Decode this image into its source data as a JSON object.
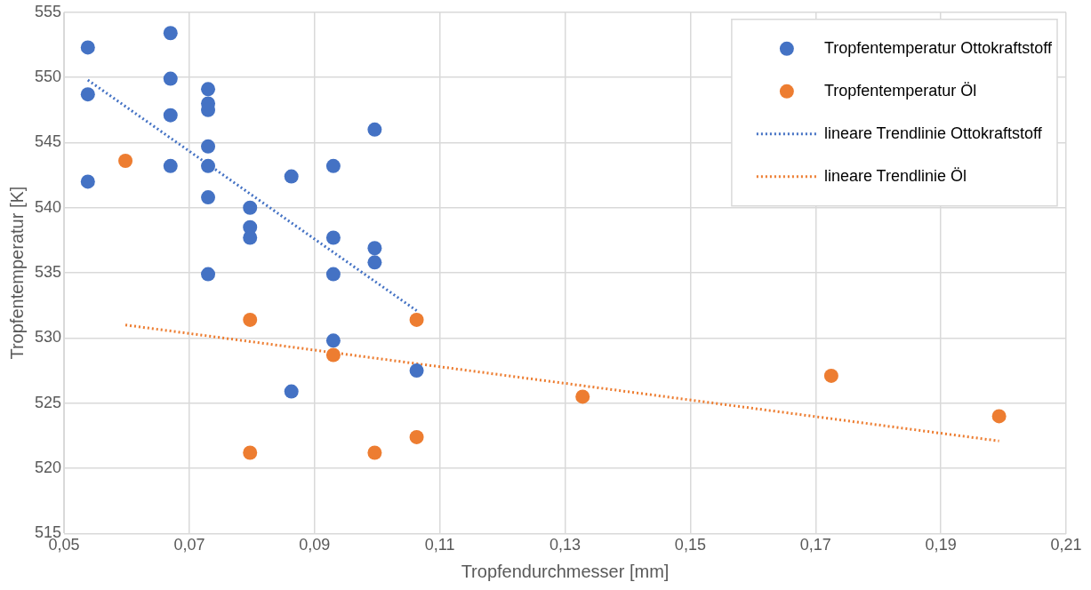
{
  "chart_data": {
    "type": "scatter",
    "xlabel": "Tropfendurchmesser [mm]",
    "ylabel": "Tropfentemperatur [K]",
    "xlim": [
      0.05,
      0.21
    ],
    "xticks": [
      {
        "value": 0.05,
        "label": "0,05"
      },
      {
        "value": 0.07,
        "label": "0,07"
      },
      {
        "value": 0.09,
        "label": "0,09"
      },
      {
        "value": 0.11,
        "label": "0,11"
      },
      {
        "value": 0.13,
        "label": "0,13"
      },
      {
        "value": 0.15,
        "label": "0,15"
      },
      {
        "value": 0.17,
        "label": "0,17"
      },
      {
        "value": 0.19,
        "label": "0,19"
      },
      {
        "value": 0.21,
        "label": "0,21"
      }
    ],
    "ylim": [
      515,
      555
    ],
    "yticks": [
      515,
      520,
      525,
      530,
      535,
      540,
      545,
      550,
      555
    ],
    "grid": true,
    "legend": "top right",
    "marker": "circle",
    "series": [
      {
        "name": "Tropfentemperatur Ottokraftstoff",
        "type": "scatter",
        "color": "#4472c4",
        "x": [
          0.0538,
          0.0538,
          0.0538,
          0.067,
          0.067,
          0.067,
          0.067,
          0.073,
          0.073,
          0.073,
          0.073,
          0.073,
          0.073,
          0.073,
          0.0797,
          0.0797,
          0.0797,
          0.0863,
          0.0863,
          0.093,
          0.093,
          0.093,
          0.093,
          0.0996,
          0.0996,
          0.0996,
          0.1063
        ],
        "values": [
          552.3,
          548.7,
          542.0,
          553.4,
          549.9,
          547.1,
          543.2,
          549.1,
          548.0,
          547.5,
          544.7,
          543.2,
          540.8,
          534.9,
          540.0,
          538.5,
          537.7,
          542.4,
          525.9,
          543.2,
          537.7,
          534.9,
          529.8,
          546.0,
          536.9,
          535.8,
          527.5
        ]
      },
      {
        "name": "Tropfentemperatur Öl",
        "type": "scatter",
        "color": "#ed7d31",
        "x": [
          0.0598,
          0.0797,
          0.0797,
          0.093,
          0.0996,
          0.1063,
          0.1063,
          0.1328,
          0.1725,
          0.1993
        ],
        "values": [
          543.6,
          531.4,
          521.2,
          528.7,
          521.2,
          531.4,
          522.4,
          525.5,
          527.1,
          524.0
        ]
      },
      {
        "name": "lineare Trendlinie Ottokraftstoff",
        "type": "line",
        "line_style": "dotted",
        "marker": "none",
        "color": "#4472c4",
        "x": [
          0.0538,
          0.1063
        ],
        "values": [
          549.8,
          532.1
        ]
      },
      {
        "name": "lineare Trendlinie Öl",
        "type": "line",
        "line_style": "dotted",
        "marker": "none",
        "color": "#ed7d31",
        "x": [
          0.0598,
          0.1993
        ],
        "values": [
          531.0,
          522.1
        ]
      }
    ]
  }
}
